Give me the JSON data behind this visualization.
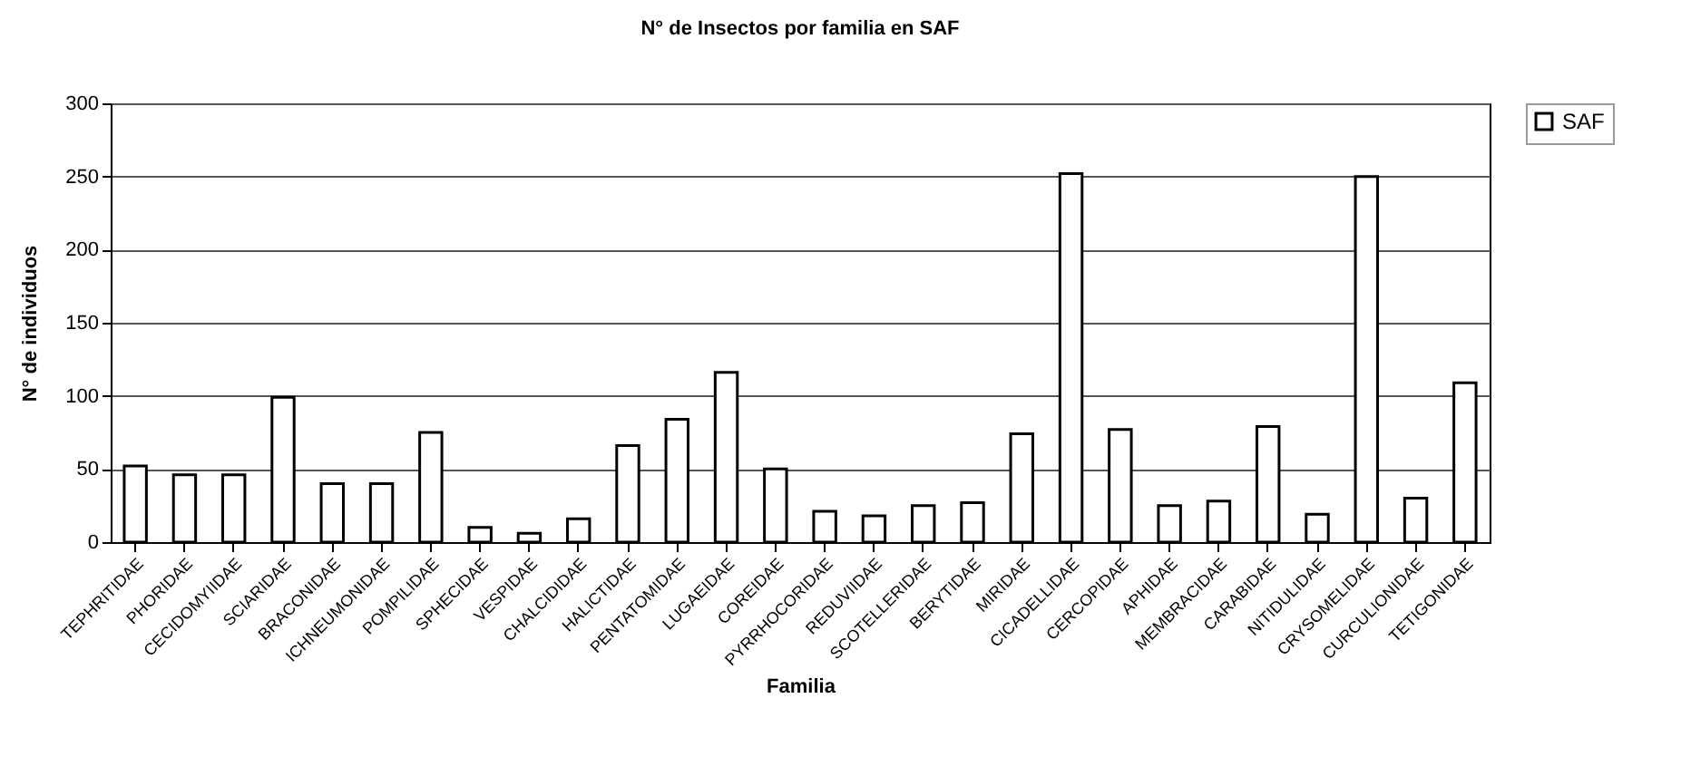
{
  "chart_data": {
    "type": "bar",
    "title": "N° de Insectos por familia en SAF",
    "xlabel": "Familia",
    "ylabel": "N° de individuos",
    "categories": [
      "TEPHRITIDAE",
      "PHORIDAE",
      "CECIDOMYIIDAE",
      "SCIARIDAE",
      "BRACONIDAE",
      "ICHNEUMONIDAE",
      "POMPILIDAE",
      "SPHECIDAE",
      "VESPIDAE",
      "CHALCIDIDAE",
      "HALICTIDAE",
      "PENTATOMIDAE",
      "LUGAEIDAE",
      "COREIDAE",
      "PYRRHOCORIDAE",
      "REDUVIIDAE",
      "SCOTELLERIDAE",
      "BERYTIDAE",
      "MIRIDAE",
      "CICADELLIDAE",
      "CERCOPIDAE",
      "APHIDAE",
      "MEMBRACIDAE",
      "CARABIDAE",
      "NITIDULIDAE",
      "CRYSOMELIDAE",
      "CURCULIONIDAE",
      "TETIGONIDAE"
    ],
    "series": [
      {
        "name": "SAF",
        "color": "#ffffff",
        "values": [
          52,
          46,
          46,
          99,
          40,
          40,
          75,
          10,
          6,
          16,
          66,
          84,
          116,
          50,
          21,
          18,
          25,
          27,
          74,
          252,
          77,
          25,
          28,
          79,
          19,
          250,
          30,
          109
        ]
      }
    ],
    "ylim": [
      0,
      300
    ],
    "yticks": [
      0,
      50,
      100,
      150,
      200,
      250,
      300
    ],
    "grid": "y",
    "legend": "right"
  }
}
